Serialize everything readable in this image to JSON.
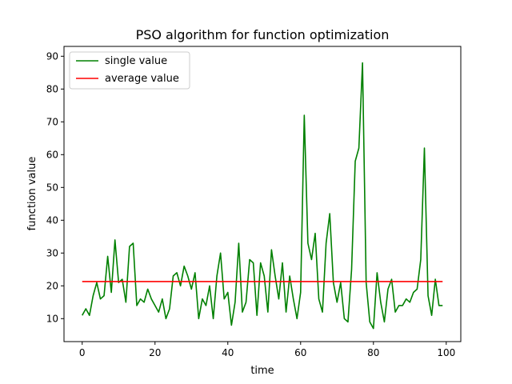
{
  "chart_data": {
    "type": "line",
    "title": "PSO algorithm for function optimization",
    "xlabel": "time",
    "ylabel": "function value",
    "xlim": [
      -5,
      104
    ],
    "ylim": [
      3,
      93
    ],
    "xticks": [
      0,
      20,
      40,
      60,
      80,
      100
    ],
    "yticks": [
      10,
      20,
      30,
      40,
      50,
      60,
      70,
      80,
      90
    ],
    "grid": false,
    "legend_position": "top-left",
    "series": [
      {
        "name": "single value",
        "color": "#008000",
        "x": [
          0,
          1,
          2,
          3,
          4,
          5,
          6,
          7,
          8,
          9,
          10,
          11,
          12,
          13,
          14,
          15,
          16,
          17,
          18,
          19,
          20,
          21,
          22,
          23,
          24,
          25,
          26,
          27,
          28,
          29,
          30,
          31,
          32,
          33,
          34,
          35,
          36,
          37,
          38,
          39,
          40,
          41,
          42,
          43,
          44,
          45,
          46,
          47,
          48,
          49,
          50,
          51,
          52,
          53,
          54,
          55,
          56,
          57,
          58,
          59,
          60,
          61,
          62,
          63,
          64,
          65,
          66,
          67,
          68,
          69,
          70,
          71,
          72,
          73,
          74,
          75,
          76,
          77,
          78,
          79,
          80,
          81,
          82,
          83,
          84,
          85,
          86,
          87,
          88,
          89,
          90,
          91,
          92,
          93,
          94,
          95,
          96,
          97,
          98,
          99
        ],
        "y": [
          11,
          13,
          11,
          17,
          21,
          16,
          17,
          29,
          18,
          34,
          21,
          22,
          15,
          32,
          33,
          14,
          16,
          15,
          19,
          16,
          14,
          12,
          16,
          10,
          13,
          23,
          24,
          20,
          26,
          23,
          19,
          24,
          10,
          16,
          14,
          20,
          10,
          23,
          30,
          16,
          18,
          8,
          15,
          33,
          12,
          15,
          28,
          27,
          11,
          27,
          23,
          12,
          31,
          23,
          16,
          27,
          12,
          23,
          16,
          10,
          18,
          72,
          33,
          28,
          36,
          16,
          12,
          33,
          42,
          21,
          15,
          21,
          10,
          9,
          25,
          58,
          62,
          88,
          21,
          9,
          7,
          24,
          15,
          9,
          19,
          22,
          12,
          14,
          14,
          16,
          15,
          18,
          19,
          28,
          62,
          17,
          11,
          22,
          14,
          14
        ]
      },
      {
        "name": "average value",
        "color": "#ff0000",
        "x": [
          0,
          99
        ],
        "y": [
          21.3,
          21.3
        ]
      }
    ]
  }
}
